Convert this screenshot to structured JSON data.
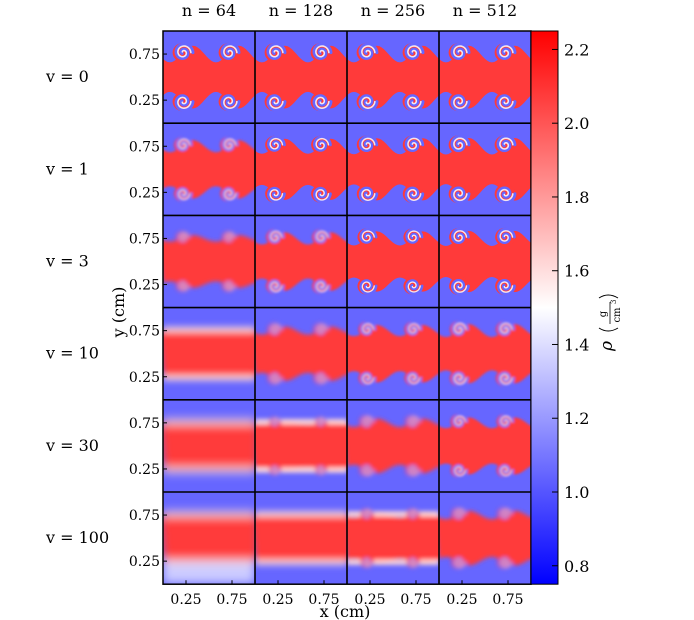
{
  "chart_data": {
    "type": "heatmap",
    "title": "",
    "xlabel": "x (cm)",
    "ylabel": "y (cm)",
    "xlim": [
      0,
      1
    ],
    "ylim": [
      0,
      1
    ],
    "columns": [
      "n = 64",
      "n = 128",
      "n = 256",
      "n = 512"
    ],
    "column_n": [
      64,
      128,
      256,
      512
    ],
    "rows": [
      "v = 0",
      "v = 1",
      "v = 3",
      "v = 10",
      "v = 30",
      "v = 100"
    ],
    "row_v": [
      0,
      1,
      3,
      10,
      30,
      100
    ],
    "x_ticks": [
      0.25,
      0.75
    ],
    "x_tick_labels": [
      "0.25",
      "0.75"
    ],
    "y_ticks": [
      0.25,
      0.75
    ],
    "y_tick_labels": [
      "0.25",
      "0.75"
    ],
    "colorbar": {
      "label": "ρ",
      "unit_numerator": "g",
      "unit_denominator": "cm",
      "unit_denominator_power": "3",
      "range": [
        0.75,
        2.25
      ],
      "ticks": [
        0.8,
        1.0,
        1.2,
        1.4,
        1.6,
        1.8,
        2.0,
        2.2
      ],
      "tick_labels": [
        "0.8",
        "1.0",
        "1.2",
        "1.4",
        "1.6",
        "1.8",
        "2.0",
        "2.2"
      ],
      "colormap": "bwr",
      "colors": {
        "low": "#0000ff",
        "mid": "#ffffff",
        "high": "#ff0000"
      }
    },
    "field": {
      "background_density": 1.0,
      "band_density": 2.0,
      "band_range_y": [
        0.25,
        0.75
      ],
      "vortices_per_interface": 2,
      "vortex_x": [
        0.25,
        0.75
      ]
    },
    "grid": false
  }
}
